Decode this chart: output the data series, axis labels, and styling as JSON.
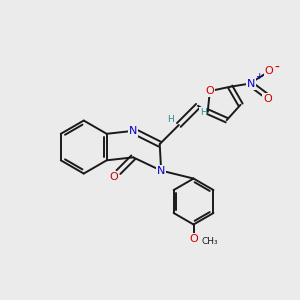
{
  "bg_color": "#ebebeb",
  "bond_color": "#1a1a1a",
  "N_color": "#0000cc",
  "O_color": "#cc0000",
  "H_color": "#2e8b8b",
  "figsize": [
    3.0,
    3.0
  ],
  "dpi": 100,
  "xlim": [
    0,
    10
  ],
  "ylim": [
    0,
    10
  ],
  "lw": 1.4,
  "fs": 8,
  "fs_small": 6.5
}
